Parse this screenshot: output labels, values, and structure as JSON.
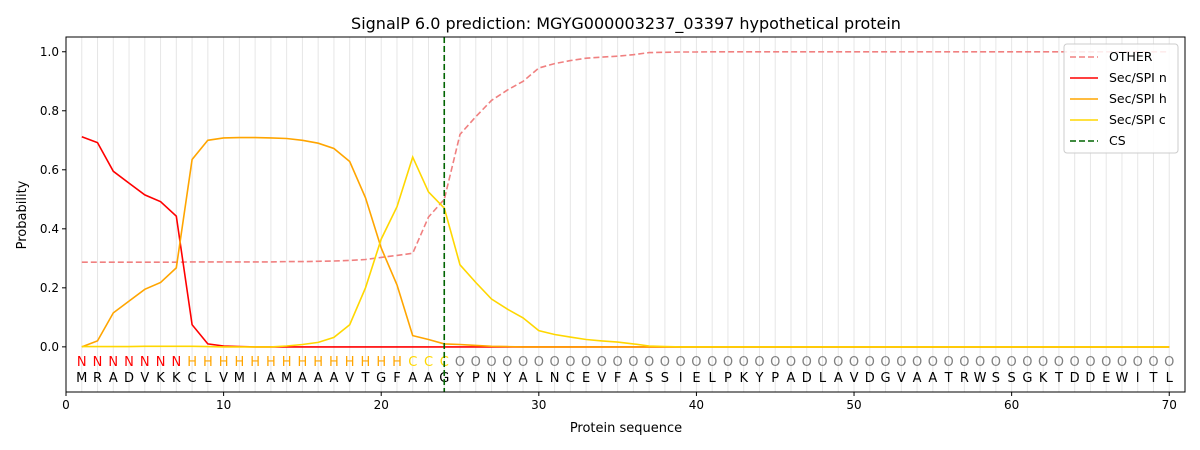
{
  "chart_data": {
    "type": "line",
    "title": "SignalP 6.0 prediction: MGYG000003237_03397 hypothetical protein",
    "xlabel": "Protein sequence",
    "ylabel": "Probability",
    "xlim": [
      0,
      71
    ],
    "ylim": [
      -0.153,
      1.05
    ],
    "xticks": [
      0,
      10,
      20,
      30,
      40,
      50,
      60,
      70
    ],
    "yticks": [
      0.0,
      0.2,
      0.4,
      0.6,
      0.8,
      1.0
    ],
    "ytick_labels": [
      "0.0",
      "0.2",
      "0.4",
      "0.6",
      "0.8",
      "1.0"
    ],
    "legend_position": "upper-right",
    "sequence": "MRADVKKCLVMIAMAAAVTGFAAGYPNYALNCEVFASSIELPKYPADLAVDGVAATRWSSGKTDDEWITL",
    "region_labels": "NNNNNNNHHHHHHHHHHHHHHCCCOOOOOOOOOOOOOOOOOOOOOOOOOOOOOOOOOOOOOOOOOOOOOO",
    "region_colors": {
      "N": "#ff0000",
      "H": "#ffa500",
      "C": "#ffd700",
      "O": "#808080"
    },
    "cleavage_site": 24,
    "series": [
      {
        "name": "OTHER",
        "color": "#f08080",
        "dash": true,
        "values": [
          0.287,
          0.287,
          0.287,
          0.287,
          0.287,
          0.287,
          0.287,
          0.288,
          0.288,
          0.288,
          0.288,
          0.288,
          0.288,
          0.289,
          0.289,
          0.29,
          0.291,
          0.293,
          0.296,
          0.303,
          0.31,
          0.317,
          0.44,
          0.5,
          0.72,
          0.78,
          0.835,
          0.87,
          0.9,
          0.945,
          0.96,
          0.97,
          0.978,
          0.982,
          0.985,
          0.99,
          0.997,
          0.998,
          0.999,
          0.999,
          1,
          1,
          1,
          1,
          1,
          1,
          1,
          1,
          1,
          1,
          1,
          1,
          1,
          1,
          1,
          1,
          1,
          1,
          1,
          1,
          1,
          1,
          1,
          1,
          1,
          1,
          1,
          1,
          1,
          1
        ]
      },
      {
        "name": "Sec/SPI n",
        "color": "#ff0000",
        "dash": false,
        "values": [
          0.712,
          0.692,
          0.595,
          0.555,
          0.515,
          0.492,
          0.443,
          0.075,
          0.01,
          0.003,
          0.001,
          0,
          0,
          0,
          0,
          0,
          0,
          0,
          0,
          0,
          0,
          0,
          0,
          0,
          0,
          0,
          0,
          0,
          0,
          0,
          0,
          0,
          0,
          0,
          0,
          0,
          0,
          0,
          0,
          0,
          0,
          0,
          0,
          0,
          0,
          0,
          0,
          0,
          0,
          0,
          0,
          0,
          0,
          0,
          0,
          0,
          0,
          0,
          0,
          0,
          0,
          0,
          0,
          0,
          0,
          0,
          0,
          0,
          0,
          0
        ]
      },
      {
        "name": "Sec/SPI h",
        "color": "#ffa500",
        "dash": false,
        "values": [
          0,
          0.02,
          0.115,
          0.155,
          0.195,
          0.218,
          0.268,
          0.635,
          0.7,
          0.708,
          0.709,
          0.709,
          0.708,
          0.706,
          0.7,
          0.69,
          0.672,
          0.628,
          0.505,
          0.335,
          0.21,
          0.038,
          0.025,
          0.01,
          0.008,
          0.005,
          0.002,
          0.001,
          0,
          0,
          0,
          0,
          0,
          0,
          0,
          0,
          0,
          0,
          0,
          0,
          0,
          0,
          0,
          0,
          0,
          0,
          0,
          0,
          0,
          0,
          0,
          0,
          0,
          0,
          0,
          0,
          0,
          0,
          0,
          0,
          0,
          0,
          0,
          0,
          0,
          0,
          0,
          0,
          0,
          0
        ]
      },
      {
        "name": "Sec/SPI c",
        "color": "#ffd700",
        "dash": false,
        "values": [
          0.001,
          0.001,
          0.001,
          0.001,
          0.002,
          0.002,
          0.002,
          0.002,
          0.001,
          0,
          0,
          0,
          0,
          0.003,
          0.008,
          0.015,
          0.032,
          0.075,
          0.2,
          0.365,
          0.475,
          0.643,
          0.525,
          0.47,
          0.278,
          0.218,
          0.162,
          0.128,
          0.098,
          0.055,
          0.042,
          0.033,
          0.025,
          0.02,
          0.016,
          0.01,
          0.003,
          0.001,
          0,
          0,
          0,
          0,
          0,
          0,
          0,
          0,
          0,
          0,
          0,
          0,
          0,
          0,
          0,
          0,
          0,
          0,
          0,
          0,
          0,
          0,
          0,
          0,
          0,
          0,
          0,
          0,
          0,
          0,
          0,
          0
        ]
      }
    ],
    "cs_legend": {
      "name": "CS",
      "color": "#006400"
    }
  }
}
